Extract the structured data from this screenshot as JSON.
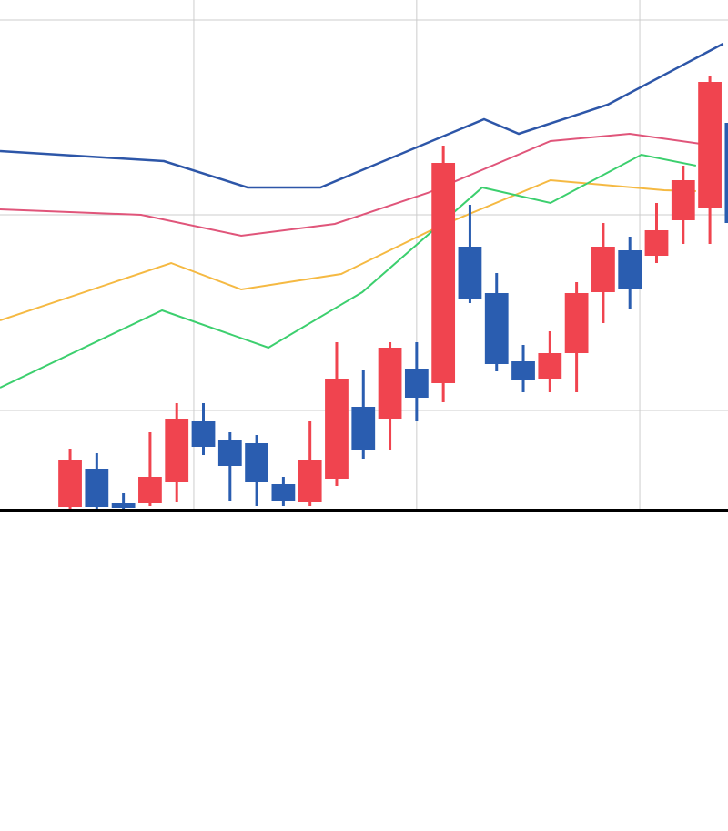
{
  "chart_data": {
    "type": "candlestick",
    "x": [
      1,
      2,
      3,
      4,
      5,
      6,
      7,
      8,
      9,
      10,
      11,
      12,
      13,
      14,
      15,
      16,
      17,
      18,
      19,
      20,
      21,
      22,
      23,
      24,
      25,
      26
    ],
    "open": [
      3,
      45,
      7,
      7,
      30,
      98,
      77,
      73,
      28,
      8,
      34,
      113,
      100,
      155,
      139,
      289,
      238,
      163,
      144,
      172,
      239,
      285,
      279,
      318,
      332,
      425
    ],
    "high": [
      67,
      62,
      18,
      85,
      117,
      117,
      85,
      82,
      36,
      98,
      184,
      154,
      184,
      184,
      400,
      335,
      260,
      181,
      196,
      250,
      315,
      300,
      337,
      378,
      476,
      440
    ],
    "low": [
      0,
      0,
      0,
      4,
      8,
      60,
      10,
      4,
      4,
      4,
      26,
      56,
      66,
      98,
      118,
      227,
      152,
      129,
      129,
      129,
      205,
      220,
      271,
      292,
      292,
      305
    ],
    "close": [
      55,
      3,
      2,
      36,
      100,
      69,
      48,
      30,
      10,
      55,
      144,
      66,
      178,
      123,
      381,
      232,
      160,
      143,
      172,
      238,
      289,
      242,
      307,
      362,
      470,
      315
    ],
    "up_color": "#f0444f",
    "down_color": "#2a5db0",
    "series": [
      {
        "color": "#2d56a8",
        "x": [
          -1.63,
          4.52,
          7.66,
          10.39,
          16.53,
          17.83,
          21.17,
          25.5
        ],
        "values": [
          394,
          383,
          354,
          354,
          429,
          413,
          445,
          512
        ]
      },
      {
        "color": "#e0557a",
        "x": [
          -1.63,
          3.66,
          7.42,
          10.93,
          14.41,
          19.02,
          21.99,
          24.65
        ],
        "values": [
          330,
          324,
          301,
          314,
          348,
          405,
          413,
          402
        ]
      },
      {
        "color": "#f5b942",
        "x": [
          -1.63,
          4.79,
          7.42,
          11.17,
          14.75,
          19.02,
          23.29,
          24.48
        ],
        "values": [
          208,
          271,
          242,
          259,
          310,
          362,
          351,
          350
        ]
      },
      {
        "color": "#3ccf6e",
        "x": [
          -1.63,
          4.45,
          8.44,
          11.96,
          16.46,
          19.02,
          22.43,
          24.48
        ],
        "values": [
          134,
          219,
          178,
          239,
          354,
          337,
          390,
          378
        ]
      }
    ],
    "xlim": [
      -1.63,
      25.68
    ],
    "xticks": [
      5.64,
      14,
      22.37
    ],
    "ylim": [
      0,
      560
    ],
    "yticks": [
      109,
      324,
      538
    ],
    "grid": true
  }
}
